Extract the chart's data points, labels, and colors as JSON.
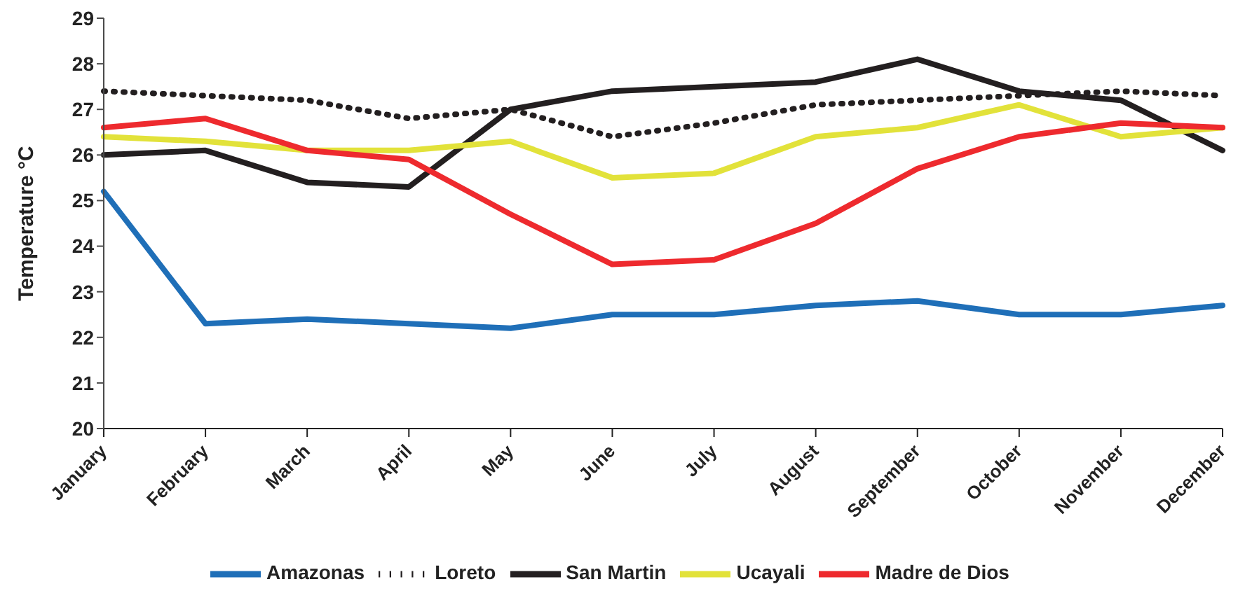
{
  "chart_data": {
    "type": "line",
    "ylabel": "Temperature °C",
    "categories": [
      "January",
      "February",
      "March",
      "April",
      "May",
      "June",
      "July",
      "August",
      "September",
      "October",
      "November",
      "December"
    ],
    "ylim": [
      20,
      29
    ],
    "yticks": [
      20,
      21,
      22,
      23,
      24,
      25,
      26,
      27,
      28,
      29
    ],
    "grid": false,
    "legend": "bottom",
    "marker": "none",
    "series": [
      {
        "name": "Amazonas",
        "color": "#1f6fb8",
        "values": [
          25.2,
          22.3,
          22.4,
          22.3,
          22.2,
          22.5,
          22.5,
          22.7,
          22.8,
          22.5,
          22.5,
          22.7
        ]
      },
      {
        "name": "Loreto",
        "color": "#231f20",
        "line_style": "dotted",
        "values": [
          27.4,
          27.3,
          27.2,
          26.8,
          27.0,
          26.4,
          26.7,
          27.1,
          27.2,
          27.3,
          27.4,
          27.3
        ]
      },
      {
        "name": "San Martin",
        "color": "#231f20",
        "values": [
          26.0,
          26.1,
          25.4,
          25.3,
          27.0,
          27.4,
          27.5,
          27.6,
          28.1,
          27.4,
          27.2,
          26.1
        ]
      },
      {
        "name": "Ucayali",
        "color": "#e2e23a",
        "values": [
          26.4,
          26.3,
          26.1,
          26.1,
          26.3,
          25.5,
          25.6,
          26.4,
          26.6,
          27.1,
          26.4,
          26.6
        ]
      },
      {
        "name": "Madre de Dios",
        "color": "#ee2a2e",
        "values": [
          26.6,
          26.8,
          26.1,
          25.9,
          24.7,
          23.6,
          23.7,
          24.5,
          25.7,
          26.4,
          26.7,
          26.6
        ]
      }
    ]
  }
}
